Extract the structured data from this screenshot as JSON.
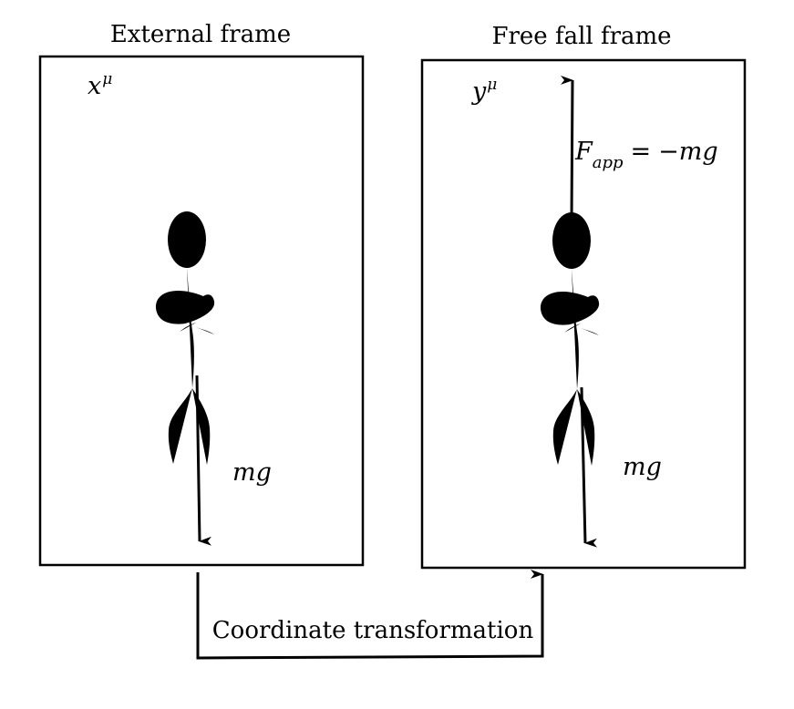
{
  "frames": {
    "external": {
      "title": "External frame",
      "coordinate_symbol": "x",
      "coordinate_index": "μ",
      "force_label": "mg"
    },
    "free_fall": {
      "title": "Free fall frame",
      "coordinate_symbol": "y",
      "coordinate_index": "μ",
      "applied_force": {
        "symbol": "F",
        "subscript": "app",
        "equals": "=",
        "value": "−mg"
      },
      "force_label": "mg"
    }
  },
  "transformation_label": "Coordinate transformation"
}
